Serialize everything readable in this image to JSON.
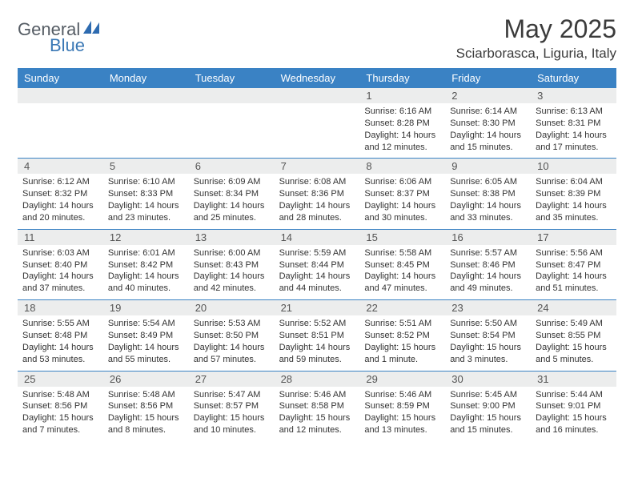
{
  "logo": {
    "text1": "General",
    "text2": "Blue"
  },
  "title": "May 2025",
  "location": "Sciarborasca, Liguria, Italy",
  "colors": {
    "header_bg": "#3a82c4",
    "header_text": "#ffffff",
    "numrow_bg": "#eceded",
    "divider": "#3a82c4",
    "body_text": "#333333",
    "logo_gray": "#555c64",
    "logo_blue": "#3a78b5"
  },
  "day_names": [
    "Sunday",
    "Monday",
    "Tuesday",
    "Wednesday",
    "Thursday",
    "Friday",
    "Saturday"
  ],
  "weeks": [
    {
      "nums": [
        "",
        "",
        "",
        "",
        "1",
        "2",
        "3"
      ],
      "cells": [
        {},
        {},
        {},
        {},
        {
          "sunrise": "Sunrise: 6:16 AM",
          "sunset": "Sunset: 8:28 PM",
          "day1": "Daylight: 14 hours",
          "day2": "and 12 minutes."
        },
        {
          "sunrise": "Sunrise: 6:14 AM",
          "sunset": "Sunset: 8:30 PM",
          "day1": "Daylight: 14 hours",
          "day2": "and 15 minutes."
        },
        {
          "sunrise": "Sunrise: 6:13 AM",
          "sunset": "Sunset: 8:31 PM",
          "day1": "Daylight: 14 hours",
          "day2": "and 17 minutes."
        }
      ]
    },
    {
      "nums": [
        "4",
        "5",
        "6",
        "7",
        "8",
        "9",
        "10"
      ],
      "cells": [
        {
          "sunrise": "Sunrise: 6:12 AM",
          "sunset": "Sunset: 8:32 PM",
          "day1": "Daylight: 14 hours",
          "day2": "and 20 minutes."
        },
        {
          "sunrise": "Sunrise: 6:10 AM",
          "sunset": "Sunset: 8:33 PM",
          "day1": "Daylight: 14 hours",
          "day2": "and 23 minutes."
        },
        {
          "sunrise": "Sunrise: 6:09 AM",
          "sunset": "Sunset: 8:34 PM",
          "day1": "Daylight: 14 hours",
          "day2": "and 25 minutes."
        },
        {
          "sunrise": "Sunrise: 6:08 AM",
          "sunset": "Sunset: 8:36 PM",
          "day1": "Daylight: 14 hours",
          "day2": "and 28 minutes."
        },
        {
          "sunrise": "Sunrise: 6:06 AM",
          "sunset": "Sunset: 8:37 PM",
          "day1": "Daylight: 14 hours",
          "day2": "and 30 minutes."
        },
        {
          "sunrise": "Sunrise: 6:05 AM",
          "sunset": "Sunset: 8:38 PM",
          "day1": "Daylight: 14 hours",
          "day2": "and 33 minutes."
        },
        {
          "sunrise": "Sunrise: 6:04 AM",
          "sunset": "Sunset: 8:39 PM",
          "day1": "Daylight: 14 hours",
          "day2": "and 35 minutes."
        }
      ]
    },
    {
      "nums": [
        "11",
        "12",
        "13",
        "14",
        "15",
        "16",
        "17"
      ],
      "cells": [
        {
          "sunrise": "Sunrise: 6:03 AM",
          "sunset": "Sunset: 8:40 PM",
          "day1": "Daylight: 14 hours",
          "day2": "and 37 minutes."
        },
        {
          "sunrise": "Sunrise: 6:01 AM",
          "sunset": "Sunset: 8:42 PM",
          "day1": "Daylight: 14 hours",
          "day2": "and 40 minutes."
        },
        {
          "sunrise": "Sunrise: 6:00 AM",
          "sunset": "Sunset: 8:43 PM",
          "day1": "Daylight: 14 hours",
          "day2": "and 42 minutes."
        },
        {
          "sunrise": "Sunrise: 5:59 AM",
          "sunset": "Sunset: 8:44 PM",
          "day1": "Daylight: 14 hours",
          "day2": "and 44 minutes."
        },
        {
          "sunrise": "Sunrise: 5:58 AM",
          "sunset": "Sunset: 8:45 PM",
          "day1": "Daylight: 14 hours",
          "day2": "and 47 minutes."
        },
        {
          "sunrise": "Sunrise: 5:57 AM",
          "sunset": "Sunset: 8:46 PM",
          "day1": "Daylight: 14 hours",
          "day2": "and 49 minutes."
        },
        {
          "sunrise": "Sunrise: 5:56 AM",
          "sunset": "Sunset: 8:47 PM",
          "day1": "Daylight: 14 hours",
          "day2": "and 51 minutes."
        }
      ]
    },
    {
      "nums": [
        "18",
        "19",
        "20",
        "21",
        "22",
        "23",
        "24"
      ],
      "cells": [
        {
          "sunrise": "Sunrise: 5:55 AM",
          "sunset": "Sunset: 8:48 PM",
          "day1": "Daylight: 14 hours",
          "day2": "and 53 minutes."
        },
        {
          "sunrise": "Sunrise: 5:54 AM",
          "sunset": "Sunset: 8:49 PM",
          "day1": "Daylight: 14 hours",
          "day2": "and 55 minutes."
        },
        {
          "sunrise": "Sunrise: 5:53 AM",
          "sunset": "Sunset: 8:50 PM",
          "day1": "Daylight: 14 hours",
          "day2": "and 57 minutes."
        },
        {
          "sunrise": "Sunrise: 5:52 AM",
          "sunset": "Sunset: 8:51 PM",
          "day1": "Daylight: 14 hours",
          "day2": "and 59 minutes."
        },
        {
          "sunrise": "Sunrise: 5:51 AM",
          "sunset": "Sunset: 8:52 PM",
          "day1": "Daylight: 15 hours",
          "day2": "and 1 minute."
        },
        {
          "sunrise": "Sunrise: 5:50 AM",
          "sunset": "Sunset: 8:54 PM",
          "day1": "Daylight: 15 hours",
          "day2": "and 3 minutes."
        },
        {
          "sunrise": "Sunrise: 5:49 AM",
          "sunset": "Sunset: 8:55 PM",
          "day1": "Daylight: 15 hours",
          "day2": "and 5 minutes."
        }
      ]
    },
    {
      "nums": [
        "25",
        "26",
        "27",
        "28",
        "29",
        "30",
        "31"
      ],
      "cells": [
        {
          "sunrise": "Sunrise: 5:48 AM",
          "sunset": "Sunset: 8:56 PM",
          "day1": "Daylight: 15 hours",
          "day2": "and 7 minutes."
        },
        {
          "sunrise": "Sunrise: 5:48 AM",
          "sunset": "Sunset: 8:56 PM",
          "day1": "Daylight: 15 hours",
          "day2": "and 8 minutes."
        },
        {
          "sunrise": "Sunrise: 5:47 AM",
          "sunset": "Sunset: 8:57 PM",
          "day1": "Daylight: 15 hours",
          "day2": "and 10 minutes."
        },
        {
          "sunrise": "Sunrise: 5:46 AM",
          "sunset": "Sunset: 8:58 PM",
          "day1": "Daylight: 15 hours",
          "day2": "and 12 minutes."
        },
        {
          "sunrise": "Sunrise: 5:46 AM",
          "sunset": "Sunset: 8:59 PM",
          "day1": "Daylight: 15 hours",
          "day2": "and 13 minutes."
        },
        {
          "sunrise": "Sunrise: 5:45 AM",
          "sunset": "Sunset: 9:00 PM",
          "day1": "Daylight: 15 hours",
          "day2": "and 15 minutes."
        },
        {
          "sunrise": "Sunrise: 5:44 AM",
          "sunset": "Sunset: 9:01 PM",
          "day1": "Daylight: 15 hours",
          "day2": "and 16 minutes."
        }
      ]
    }
  ]
}
